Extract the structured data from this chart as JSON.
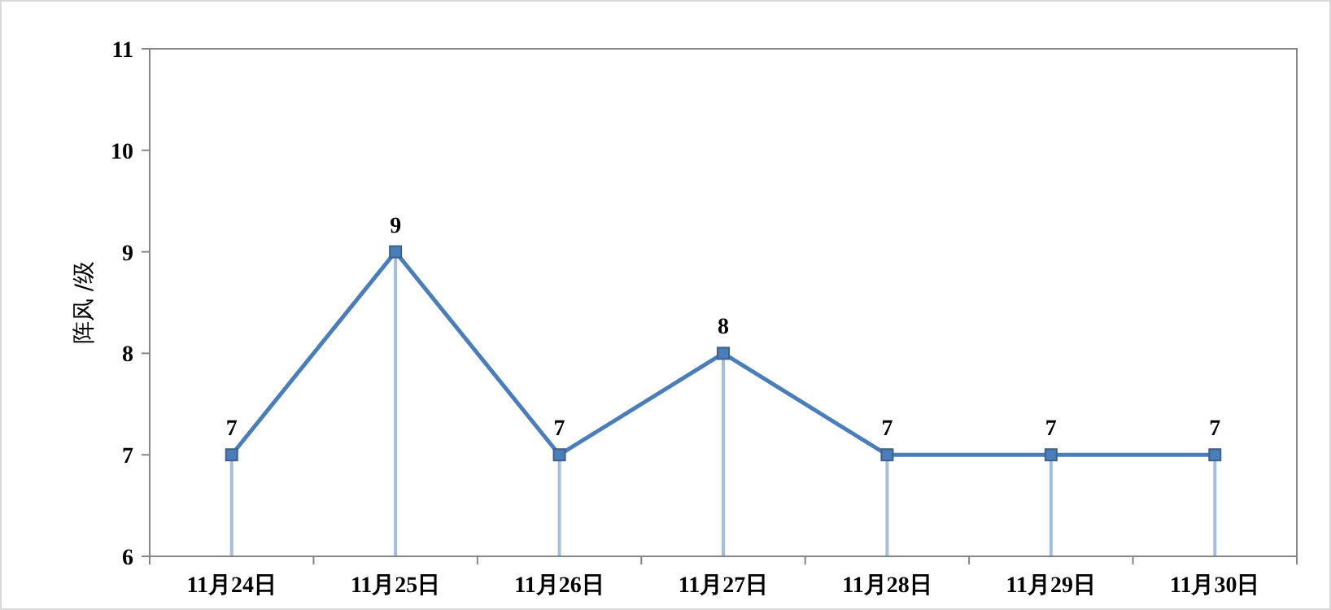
{
  "chart_data": {
    "type": "line",
    "ylabel": "阵风 /级",
    "categories": [
      "11月24日",
      "11月25日",
      "11月26日",
      "11月27日",
      "11月28日",
      "11月29日",
      "11月30日"
    ],
    "series": [
      {
        "color": "#4a7ebb",
        "values": [
          7,
          9,
          7,
          8,
          7,
          7,
          7
        ],
        "errors": [
          [
            6,
            7
          ],
          [
            6,
            9
          ],
          [
            6,
            7
          ],
          [
            6,
            8
          ],
          [
            6,
            7
          ],
          [
            6,
            7
          ],
          [
            6,
            7
          ]
        ]
      }
    ],
    "ylim": [
      6,
      11
    ],
    "yticks": [
      6,
      7,
      8,
      9,
      10,
      11
    ],
    "marker": "square",
    "line_style": "solid",
    "data_labels": true,
    "grid": false
  }
}
